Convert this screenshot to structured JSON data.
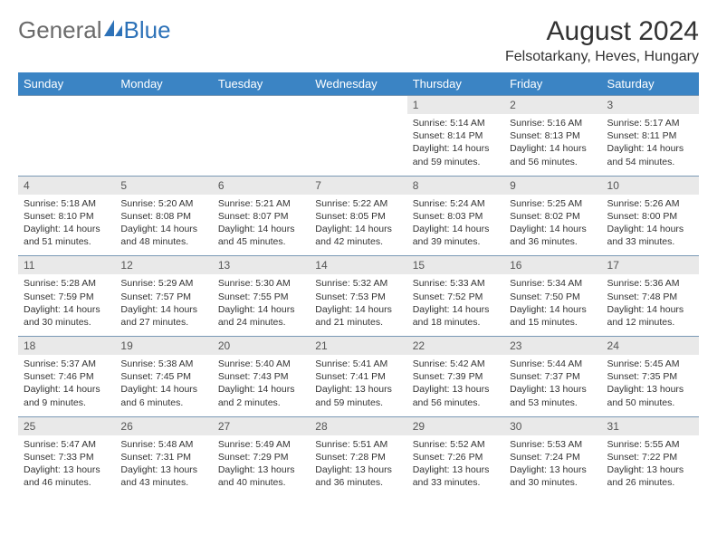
{
  "brand": {
    "word1": "General",
    "word2": "Blue"
  },
  "colors": {
    "header_bg": "#3b84c4",
    "daynum_bg": "#e9e9e9",
    "row_border": "#7a99b5"
  },
  "title": "August 2024",
  "location": "Felsotarkany, Heves, Hungary",
  "weekdays": [
    "Sunday",
    "Monday",
    "Tuesday",
    "Wednesday",
    "Thursday",
    "Friday",
    "Saturday"
  ],
  "weeks": [
    {
      "days": [
        null,
        null,
        null,
        null,
        {
          "n": "1",
          "sunrise": "Sunrise: 5:14 AM",
          "sunset": "Sunset: 8:14 PM",
          "daylight": "Daylight: 14 hours and 59 minutes."
        },
        {
          "n": "2",
          "sunrise": "Sunrise: 5:16 AM",
          "sunset": "Sunset: 8:13 PM",
          "daylight": "Daylight: 14 hours and 56 minutes."
        },
        {
          "n": "3",
          "sunrise": "Sunrise: 5:17 AM",
          "sunset": "Sunset: 8:11 PM",
          "daylight": "Daylight: 14 hours and 54 minutes."
        }
      ]
    },
    {
      "days": [
        {
          "n": "4",
          "sunrise": "Sunrise: 5:18 AM",
          "sunset": "Sunset: 8:10 PM",
          "daylight": "Daylight: 14 hours and 51 minutes."
        },
        {
          "n": "5",
          "sunrise": "Sunrise: 5:20 AM",
          "sunset": "Sunset: 8:08 PM",
          "daylight": "Daylight: 14 hours and 48 minutes."
        },
        {
          "n": "6",
          "sunrise": "Sunrise: 5:21 AM",
          "sunset": "Sunset: 8:07 PM",
          "daylight": "Daylight: 14 hours and 45 minutes."
        },
        {
          "n": "7",
          "sunrise": "Sunrise: 5:22 AM",
          "sunset": "Sunset: 8:05 PM",
          "daylight": "Daylight: 14 hours and 42 minutes."
        },
        {
          "n": "8",
          "sunrise": "Sunrise: 5:24 AM",
          "sunset": "Sunset: 8:03 PM",
          "daylight": "Daylight: 14 hours and 39 minutes."
        },
        {
          "n": "9",
          "sunrise": "Sunrise: 5:25 AM",
          "sunset": "Sunset: 8:02 PM",
          "daylight": "Daylight: 14 hours and 36 minutes."
        },
        {
          "n": "10",
          "sunrise": "Sunrise: 5:26 AM",
          "sunset": "Sunset: 8:00 PM",
          "daylight": "Daylight: 14 hours and 33 minutes."
        }
      ]
    },
    {
      "days": [
        {
          "n": "11",
          "sunrise": "Sunrise: 5:28 AM",
          "sunset": "Sunset: 7:59 PM",
          "daylight": "Daylight: 14 hours and 30 minutes."
        },
        {
          "n": "12",
          "sunrise": "Sunrise: 5:29 AM",
          "sunset": "Sunset: 7:57 PM",
          "daylight": "Daylight: 14 hours and 27 minutes."
        },
        {
          "n": "13",
          "sunrise": "Sunrise: 5:30 AM",
          "sunset": "Sunset: 7:55 PM",
          "daylight": "Daylight: 14 hours and 24 minutes."
        },
        {
          "n": "14",
          "sunrise": "Sunrise: 5:32 AM",
          "sunset": "Sunset: 7:53 PM",
          "daylight": "Daylight: 14 hours and 21 minutes."
        },
        {
          "n": "15",
          "sunrise": "Sunrise: 5:33 AM",
          "sunset": "Sunset: 7:52 PM",
          "daylight": "Daylight: 14 hours and 18 minutes."
        },
        {
          "n": "16",
          "sunrise": "Sunrise: 5:34 AM",
          "sunset": "Sunset: 7:50 PM",
          "daylight": "Daylight: 14 hours and 15 minutes."
        },
        {
          "n": "17",
          "sunrise": "Sunrise: 5:36 AM",
          "sunset": "Sunset: 7:48 PM",
          "daylight": "Daylight: 14 hours and 12 minutes."
        }
      ]
    },
    {
      "days": [
        {
          "n": "18",
          "sunrise": "Sunrise: 5:37 AM",
          "sunset": "Sunset: 7:46 PM",
          "daylight": "Daylight: 14 hours and 9 minutes."
        },
        {
          "n": "19",
          "sunrise": "Sunrise: 5:38 AM",
          "sunset": "Sunset: 7:45 PM",
          "daylight": "Daylight: 14 hours and 6 minutes."
        },
        {
          "n": "20",
          "sunrise": "Sunrise: 5:40 AM",
          "sunset": "Sunset: 7:43 PM",
          "daylight": "Daylight: 14 hours and 2 minutes."
        },
        {
          "n": "21",
          "sunrise": "Sunrise: 5:41 AM",
          "sunset": "Sunset: 7:41 PM",
          "daylight": "Daylight: 13 hours and 59 minutes."
        },
        {
          "n": "22",
          "sunrise": "Sunrise: 5:42 AM",
          "sunset": "Sunset: 7:39 PM",
          "daylight": "Daylight: 13 hours and 56 minutes."
        },
        {
          "n": "23",
          "sunrise": "Sunrise: 5:44 AM",
          "sunset": "Sunset: 7:37 PM",
          "daylight": "Daylight: 13 hours and 53 minutes."
        },
        {
          "n": "24",
          "sunrise": "Sunrise: 5:45 AM",
          "sunset": "Sunset: 7:35 PM",
          "daylight": "Daylight: 13 hours and 50 minutes."
        }
      ]
    },
    {
      "days": [
        {
          "n": "25",
          "sunrise": "Sunrise: 5:47 AM",
          "sunset": "Sunset: 7:33 PM",
          "daylight": "Daylight: 13 hours and 46 minutes."
        },
        {
          "n": "26",
          "sunrise": "Sunrise: 5:48 AM",
          "sunset": "Sunset: 7:31 PM",
          "daylight": "Daylight: 13 hours and 43 minutes."
        },
        {
          "n": "27",
          "sunrise": "Sunrise: 5:49 AM",
          "sunset": "Sunset: 7:29 PM",
          "daylight": "Daylight: 13 hours and 40 minutes."
        },
        {
          "n": "28",
          "sunrise": "Sunrise: 5:51 AM",
          "sunset": "Sunset: 7:28 PM",
          "daylight": "Daylight: 13 hours and 36 minutes."
        },
        {
          "n": "29",
          "sunrise": "Sunrise: 5:52 AM",
          "sunset": "Sunset: 7:26 PM",
          "daylight": "Daylight: 13 hours and 33 minutes."
        },
        {
          "n": "30",
          "sunrise": "Sunrise: 5:53 AM",
          "sunset": "Sunset: 7:24 PM",
          "daylight": "Daylight: 13 hours and 30 minutes."
        },
        {
          "n": "31",
          "sunrise": "Sunrise: 5:55 AM",
          "sunset": "Sunset: 7:22 PM",
          "daylight": "Daylight: 13 hours and 26 minutes."
        }
      ]
    }
  ]
}
